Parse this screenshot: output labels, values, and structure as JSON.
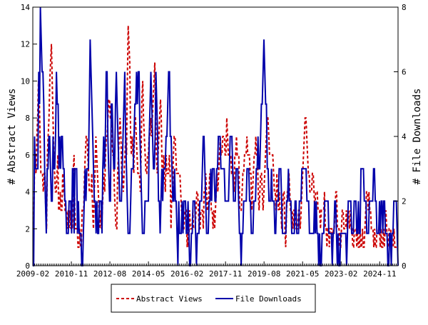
{
  "chart_data": {
    "type": "line",
    "xlabel": "",
    "ylabel_left": "# Abstract Views",
    "ylabel_right": "# File Downloads",
    "x_range": [
      "2009-02",
      "2025-09"
    ],
    "ylim_left": [
      0,
      14
    ],
    "ylim_right": [
      0,
      8
    ],
    "yticks_left": [
      0,
      2,
      4,
      6,
      8,
      10,
      12,
      14
    ],
    "yticks_right": [
      0,
      2,
      4,
      6,
      8
    ],
    "xticks": [
      "2009-02",
      "2010-11",
      "2012-08",
      "2014-05",
      "2016-02",
      "2017-11",
      "2019-08",
      "2021-05",
      "2023-02",
      "2024-11"
    ],
    "grid": false,
    "legend_position": "bottom",
    "series": [
      {
        "name": "Abstract Views",
        "axis": "left",
        "color": "#cc0000",
        "dash": "dashed",
        "start": "2009-02",
        "values": [
          2,
          2,
          5,
          6,
          5,
          7,
          8,
          10,
          9,
          7,
          5,
          5,
          5,
          4,
          5,
          5,
          3,
          2,
          6,
          7,
          8,
          10,
          11,
          12,
          10,
          8,
          6,
          5,
          4,
          4,
          5,
          6,
          3,
          3,
          4,
          3,
          3,
          5,
          4,
          4,
          3,
          3,
          3,
          2,
          3,
          2,
          3,
          2,
          3,
          2,
          5,
          6,
          3,
          2,
          2,
          2,
          1,
          1,
          2,
          1,
          1,
          3,
          3,
          3,
          5,
          6,
          7,
          7,
          6,
          5,
          4,
          4,
          4,
          5,
          3,
          2,
          4,
          5,
          7,
          6,
          5,
          4,
          3,
          2,
          3,
          2,
          3,
          4,
          5,
          4,
          6,
          7,
          7,
          8,
          9,
          9,
          8,
          8,
          7,
          6,
          6,
          4,
          3,
          2,
          2,
          5,
          6,
          7,
          8,
          7,
          5,
          5,
          4,
          5,
          6,
          7,
          6,
          10,
          13,
          12,
          11,
          7,
          6,
          7,
          6,
          5,
          8,
          8,
          7,
          6,
          5,
          5,
          5,
          4,
          6,
          9,
          10,
          8,
          7,
          6,
          5,
          5,
          6,
          6,
          7,
          7,
          8,
          7,
          8,
          9,
          10,
          11,
          8,
          6,
          5,
          6,
          7,
          8,
          9,
          8,
          5,
          5,
          6,
          5,
          4,
          6,
          5,
          5,
          5,
          6,
          5,
          2,
          4,
          4,
          6,
          7,
          7,
          6,
          5,
          5,
          5,
          5,
          5,
          4,
          3,
          3,
          2,
          2,
          3,
          3,
          3,
          1,
          2,
          1,
          3,
          2,
          2,
          2,
          3,
          2,
          2,
          2,
          3,
          4,
          4,
          3,
          2,
          2,
          3,
          3,
          3,
          2,
          4,
          4,
          5,
          4,
          3,
          3,
          4,
          5,
          4,
          3,
          3,
          2,
          3,
          2,
          3,
          4,
          5,
          4,
          5,
          6,
          7,
          6,
          6,
          7,
          7,
          7,
          6,
          6,
          8,
          7,
          6,
          6,
          6,
          6,
          5,
          5,
          5,
          4,
          6,
          6,
          7,
          6,
          6,
          6,
          3,
          3,
          3,
          4,
          5,
          5,
          6,
          6,
          6,
          7,
          6,
          6,
          6,
          5,
          5,
          3,
          4,
          5,
          6,
          6,
          7,
          6,
          6,
          4,
          3,
          4,
          5,
          5,
          4,
          3,
          4,
          5,
          6,
          7,
          8,
          8,
          7,
          6,
          6,
          6,
          6,
          6,
          5,
          4,
          4,
          3,
          5,
          4,
          3,
          4,
          3,
          3,
          2,
          3,
          4,
          4,
          2,
          1,
          3,
          4,
          4,
          5,
          4,
          3,
          3,
          3,
          2,
          3,
          3,
          3,
          2,
          2,
          2,
          3,
          3,
          2,
          3,
          4,
          5,
          6,
          7,
          8,
          8,
          7,
          6,
          5,
          5,
          4,
          4,
          4,
          5,
          5,
          4,
          3,
          4,
          4,
          4,
          3,
          3,
          3,
          2,
          3,
          3,
          3,
          3,
          4,
          2,
          2,
          1,
          2,
          2,
          1,
          2,
          2,
          2,
          1,
          2,
          2,
          3,
          4,
          4,
          2,
          2,
          2,
          1,
          1,
          2,
          3,
          3,
          2,
          2,
          2,
          3,
          2,
          3,
          3,
          2,
          3,
          2,
          2,
          1,
          1,
          2,
          2,
          2,
          1,
          2,
          1,
          1,
          2,
          1,
          1,
          2,
          1,
          1,
          2,
          3,
          4,
          4,
          3,
          4,
          3,
          3,
          2,
          2,
          2,
          1,
          2,
          1,
          1,
          2,
          2,
          2,
          2,
          1,
          2,
          1,
          1,
          2,
          1,
          2,
          3,
          2,
          1,
          1,
          2,
          2,
          2,
          1,
          1,
          1,
          2,
          1,
          1,
          1,
          1,
          1
        ]
      },
      {
        "name": "File Downloads",
        "axis": "right",
        "color": "#0000aa",
        "dash": "solid",
        "start": "2009-02",
        "values": [
          0,
          0,
          4,
          3,
          3,
          3,
          3,
          6,
          5,
          8,
          7,
          6,
          6,
          5,
          3,
          2,
          1,
          3,
          3,
          4,
          4,
          3,
          2,
          2,
          4,
          3,
          3,
          4,
          6,
          5,
          5,
          3,
          4,
          3,
          4,
          4,
          3,
          3,
          2,
          2,
          1,
          1,
          1,
          2,
          2,
          2,
          1,
          3,
          3,
          1,
          3,
          3,
          3,
          1,
          2,
          1,
          1,
          1,
          0,
          0,
          1,
          2,
          3,
          2,
          3,
          3,
          3,
          5,
          7,
          6,
          5,
          4,
          3,
          2,
          2,
          1,
          2,
          1,
          1,
          2,
          2,
          2,
          1,
          3,
          4,
          3,
          4,
          6,
          6,
          4,
          3,
          2,
          2,
          5,
          5,
          4,
          3,
          3,
          5,
          6,
          5,
          4,
          3,
          2,
          2,
          2,
          3,
          4,
          5,
          6,
          4,
          3,
          2,
          1,
          1,
          1,
          2,
          3,
          3,
          3,
          4,
          5,
          5,
          6,
          5,
          6,
          6,
          4,
          3,
          2,
          1,
          1,
          1,
          2,
          2,
          2,
          2,
          2,
          4,
          5,
          6,
          5,
          4,
          3,
          3,
          4,
          6,
          5,
          4,
          2,
          2,
          1,
          2,
          3,
          2,
          3,
          3,
          3,
          4,
          4,
          5,
          6,
          6,
          4,
          4,
          3,
          2,
          2,
          3,
          2,
          2,
          1,
          0,
          2,
          1,
          1,
          1,
          2,
          1,
          2,
          2,
          2,
          1,
          1,
          2,
          1,
          0,
          0,
          1,
          1,
          2,
          2,
          2,
          1,
          0,
          1,
          1,
          1,
          2,
          2,
          2,
          3,
          4,
          4,
          3,
          2,
          1,
          1,
          1,
          2,
          2,
          3,
          2,
          3,
          3,
          3,
          2,
          2,
          3,
          3,
          4,
          4,
          4,
          3,
          3,
          3,
          3,
          3,
          2,
          2,
          2,
          2,
          2,
          3,
          4,
          4,
          4,
          3,
          2,
          2,
          2,
          3,
          3,
          3,
          2,
          1,
          1,
          0,
          1,
          1,
          2,
          2,
          2,
          2,
          3,
          3,
          3,
          2,
          2,
          1,
          1,
          1,
          2,
          2,
          2,
          3,
          3,
          4,
          3,
          3,
          4,
          5,
          5,
          6,
          7,
          6,
          5,
          5,
          3,
          3,
          2,
          2,
          2,
          3,
          2,
          2,
          2,
          1,
          1,
          2,
          2,
          2,
          3,
          3,
          3,
          2,
          1,
          1,
          1,
          1,
          1,
          2,
          2,
          3,
          2,
          2,
          2,
          1,
          1,
          1,
          1,
          2,
          2,
          1,
          1,
          1,
          2,
          2,
          2,
          3,
          3,
          3,
          3,
          3,
          3,
          2,
          2,
          2,
          1,
          1,
          1,
          1,
          1,
          1,
          2,
          1,
          2,
          1,
          1,
          0,
          1,
          0,
          0,
          1,
          1,
          1,
          2,
          2,
          2,
          2,
          2,
          1,
          1,
          1,
          1,
          0,
          1,
          1,
          2,
          2,
          1,
          0,
          1,
          0,
          0,
          1,
          1,
          1,
          1,
          1,
          1,
          1,
          0,
          1,
          2,
          2,
          2,
          2,
          1,
          1,
          1,
          2,
          2,
          2,
          1,
          1,
          2,
          1,
          1,
          3,
          3,
          3,
          3,
          2,
          2,
          2,
          1,
          1,
          1,
          2,
          2,
          2,
          2,
          2,
          3,
          3,
          2,
          2,
          1,
          1,
          1,
          2,
          1,
          2,
          2,
          1,
          2,
          2,
          1,
          1,
          1,
          0,
          0,
          1,
          1,
          0,
          1,
          1,
          2,
          2,
          2,
          2,
          1,
          0
        ]
      }
    ]
  },
  "legend": {
    "items": [
      {
        "label": "Abstract Views",
        "color": "#cc0000",
        "dash": "dashed"
      },
      {
        "label": "File Downloads",
        "color": "#0000aa",
        "dash": "solid"
      }
    ]
  }
}
